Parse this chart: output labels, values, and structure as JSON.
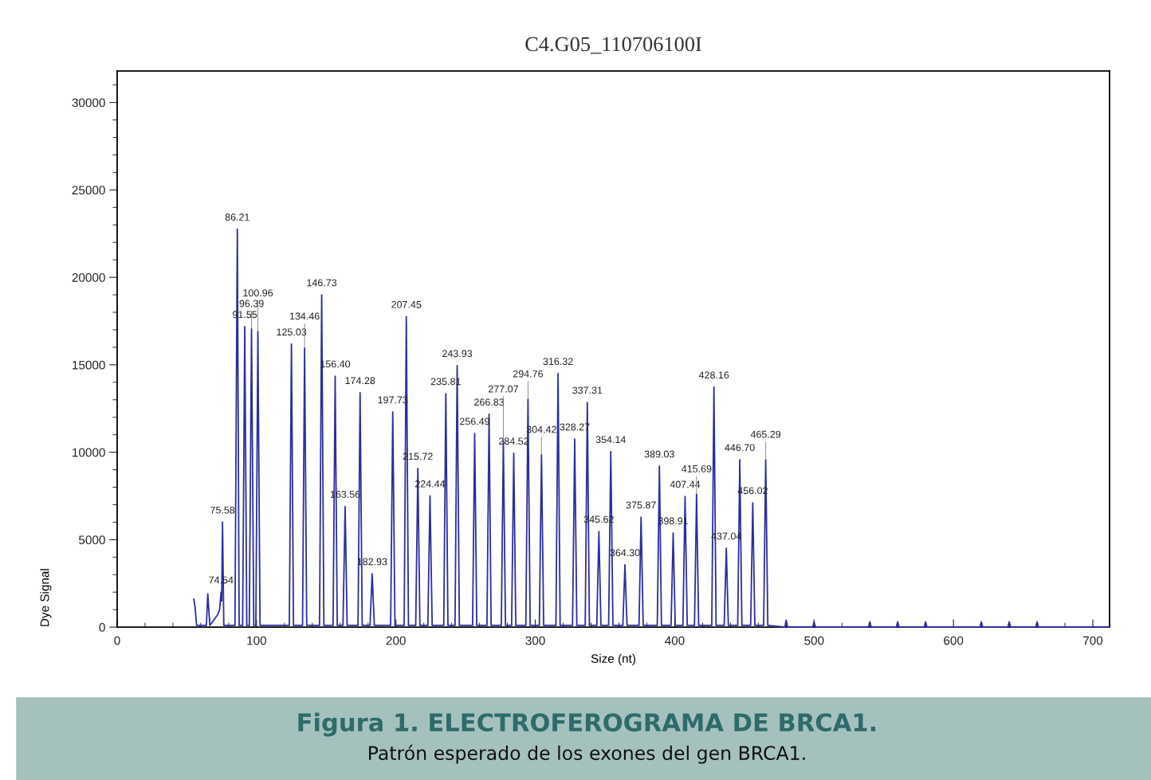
{
  "chart_data": {
    "type": "line",
    "title": "C4.G05_110706100I",
    "xlabel": "Size (nt)",
    "ylabel": "Dye Signal",
    "xlim": [
      0,
      712
    ],
    "ylim": [
      0,
      31800
    ],
    "xticks": [
      0,
      {
        "value": 20,
        "label": null
      },
      {
        "value": 40,
        "label": null
      },
      {
        "value": 60,
        "label": null
      },
      {
        "value": 80,
        "label": null
      },
      100,
      {
        "value": 120,
        "label": null
      },
      {
        "value": 140,
        "label": null
      },
      {
        "value": 160,
        "label": null
      },
      {
        "value": 180,
        "label": null
      },
      200,
      {
        "value": 220,
        "label": null
      },
      {
        "value": 240,
        "label": null
      },
      {
        "value": 260,
        "label": null
      },
      {
        "value": 280,
        "label": null
      },
      300,
      {
        "value": 320,
        "label": null
      },
      {
        "value": 340,
        "label": null
      },
      {
        "value": 360,
        "label": null
      },
      {
        "value": 380,
        "label": null
      },
      400,
      {
        "value": 420,
        "label": null
      },
      {
        "value": 440,
        "label": null
      },
      {
        "value": 460,
        "label": null
      },
      {
        "value": 480,
        "label": null
      },
      500,
      {
        "value": 520,
        "label": null
      },
      {
        "value": 540,
        "label": null
      },
      {
        "value": 560,
        "label": null
      },
      {
        "value": 580,
        "label": null
      },
      600,
      {
        "value": 620,
        "label": null
      },
      {
        "value": 640,
        "label": null
      },
      {
        "value": 660,
        "label": null
      },
      {
        "value": 680,
        "label": null
      },
      700
    ],
    "yticks": [
      0,
      {
        "value": 1000,
        "label": null
      },
      {
        "value": 2000,
        "label": null
      },
      {
        "value": 3000,
        "label": null
      },
      {
        "value": 4000,
        "label": null
      },
      5000,
      {
        "value": 6000,
        "label": null
      },
      {
        "value": 7000,
        "label": null
      },
      {
        "value": 8000,
        "label": null
      },
      {
        "value": 9000,
        "label": null
      },
      10000,
      {
        "value": 11000,
        "label": null
      },
      {
        "value": 12000,
        "label": null
      },
      {
        "value": 13000,
        "label": null
      },
      {
        "value": 14000,
        "label": null
      },
      15000,
      {
        "value": 16000,
        "label": null
      },
      {
        "value": 17000,
        "label": null
      },
      {
        "value": 18000,
        "label": null
      },
      {
        "value": 19000,
        "label": null
      },
      20000,
      {
        "value": 21000,
        "label": null
      },
      {
        "value": 22000,
        "label": null
      },
      {
        "value": 23000,
        "label": null
      },
      {
        "value": 24000,
        "label": null
      },
      25000,
      {
        "value": 26000,
        "label": null
      },
      {
        "value": 27000,
        "label": null
      },
      {
        "value": 28000,
        "label": null
      },
      {
        "value": 29000,
        "label": null
      },
      30000,
      {
        "value": 31000,
        "label": null
      }
    ],
    "grid": false,
    "marker": "none",
    "line_style": "solid",
    "series": [
      {
        "color": "#2b2f9e",
        "x": [
          55,
          55.8,
          57,
          60,
          64,
          65,
          66.5,
          72,
          73.5,
          74.54,
          75,
          75.58,
          76.5,
          84.5,
          86.21,
          87.5,
          90,
          91.55,
          93,
          94.8,
          96.39,
          98,
          99.5,
          100.96,
          102.5,
          123.5,
          125.03,
          126.5,
          133,
          134.46,
          136,
          145.2,
          146.73,
          148.3,
          154.9,
          156.4,
          157.9,
          162,
          163.56,
          165,
          172.8,
          174.28,
          175.8,
          181.4,
          182.93,
          184.5,
          196.2,
          197.73,
          199.3,
          205.9,
          207.45,
          209,
          214.2,
          215.72,
          217.2,
          222.9,
          224.44,
          226,
          234.3,
          235.81,
          237.3,
          242.4,
          243.93,
          245.5,
          255,
          256.49,
          258,
          265.3,
          266.83,
          268.3,
          275.6,
          277.07,
          278.6,
          283,
          284.52,
          286,
          293.2,
          294.76,
          296.3,
          302.9,
          304.42,
          306,
          314.8,
          316.32,
          317.8,
          326.7,
          328.27,
          329.8,
          335.8,
          337.31,
          338.8,
          344.1,
          345.62,
          347.1,
          352.6,
          354.14,
          355.7,
          362.8,
          364.3,
          365.8,
          374.4,
          375.87,
          377.4,
          387.5,
          389.03,
          390.5,
          397.4,
          398.91,
          400.4,
          405.9,
          407.44,
          409,
          414.2,
          415.69,
          417.2,
          426.6,
          428.16,
          429.7,
          435.5,
          437.04,
          438.5,
          445.2,
          446.7,
          448.2,
          454.5,
          456.02,
          457.5,
          463.8,
          465.29,
          466.8,
          479,
          480,
          481,
          499,
          500,
          501,
          539,
          540,
          541,
          559,
          560,
          561,
          579,
          580,
          581,
          619,
          620,
          621,
          639,
          640,
          641,
          659,
          660,
          661,
          712
        ],
        "values": [
          1600,
          1200,
          100,
          100,
          100,
          1900,
          100,
          700,
          1000,
          2000,
          1500,
          6000,
          100,
          100,
          22750,
          100,
          100,
          17180,
          100,
          100,
          17050,
          100,
          100,
          16900,
          100,
          100,
          16180,
          100,
          100,
          15950,
          100,
          100,
          19000,
          100,
          100,
          14350,
          100,
          100,
          6900,
          100,
          100,
          13400,
          100,
          100,
          3050,
          100,
          100,
          12300,
          100,
          100,
          17750,
          100,
          100,
          9070,
          100,
          100,
          7500,
          100,
          100,
          13350,
          100,
          100,
          14950,
          100,
          100,
          11070,
          100,
          100,
          12170,
          100,
          100,
          10650,
          100,
          100,
          9940,
          100,
          100,
          13030,
          100,
          100,
          9850,
          100,
          100,
          14500,
          100,
          100,
          10750,
          100,
          100,
          12850,
          100,
          100,
          5470,
          100,
          100,
          10030,
          100,
          100,
          3560,
          100,
          100,
          6290,
          100,
          100,
          9200,
          100,
          100,
          5380,
          100,
          100,
          7470,
          100,
          100,
          7600,
          100,
          100,
          13720,
          100,
          100,
          4510,
          100,
          100,
          9570,
          100,
          100,
          7110,
          100,
          100,
          9570,
          100,
          0,
          400,
          0,
          0,
          300,
          0,
          0,
          300,
          0,
          0,
          300,
          0,
          0,
          300,
          0,
          0,
          300,
          0,
          0,
          300,
          0,
          0,
          300,
          0,
          0
        ]
      }
    ],
    "annotations": [
      {
        "text": "74.54",
        "x": 74.54,
        "y": 2000
      },
      {
        "text": "75.58",
        "x": 75.58,
        "y": 6000
      },
      {
        "text": "86.21",
        "x": 86.21,
        "y": 22750
      },
      {
        "text": "91.55",
        "x": 91.55,
        "y": 17180
      },
      {
        "text": "96.39",
        "x": 96.39,
        "y": 17050
      },
      {
        "text": "100.96",
        "x": 100.96,
        "y": 16900
      },
      {
        "text": "125.03",
        "x": 125.03,
        "y": 16180
      },
      {
        "text": "134.46",
        "x": 134.46,
        "y": 15950
      },
      {
        "text": "146.73",
        "x": 146.73,
        "y": 19000
      },
      {
        "text": "156.40",
        "x": 156.4,
        "y": 14350
      },
      {
        "text": "163.56",
        "x": 163.56,
        "y": 6900
      },
      {
        "text": "174.28",
        "x": 174.28,
        "y": 13400
      },
      {
        "text": "182.93",
        "x": 182.93,
        "y": 3050
      },
      {
        "text": "197.73",
        "x": 197.73,
        "y": 12300
      },
      {
        "text": "207.45",
        "x": 207.45,
        "y": 17750
      },
      {
        "text": "215.72",
        "x": 215.72,
        "y": 9070
      },
      {
        "text": "224.44",
        "x": 224.44,
        "y": 7500
      },
      {
        "text": "235.81",
        "x": 235.81,
        "y": 13350
      },
      {
        "text": "243.93",
        "x": 243.93,
        "y": 14950
      },
      {
        "text": "256.49",
        "x": 256.49,
        "y": 11070
      },
      {
        "text": "266.83",
        "x": 266.83,
        "y": 12170
      },
      {
        "text": "277.07",
        "x": 277.07,
        "y": 10650
      },
      {
        "text": "284.52",
        "x": 284.52,
        "y": 9940
      },
      {
        "text": "294.76",
        "x": 294.76,
        "y": 13030
      },
      {
        "text": "304.42",
        "x": 304.42,
        "y": 9850
      },
      {
        "text": "316.32",
        "x": 316.32,
        "y": 14500
      },
      {
        "text": "328.27",
        "x": 328.27,
        "y": 10750
      },
      {
        "text": "337.31",
        "x": 337.31,
        "y": 12850
      },
      {
        "text": "345.62",
        "x": 345.62,
        "y": 5470
      },
      {
        "text": "354.14",
        "x": 354.14,
        "y": 10030
      },
      {
        "text": "364.30",
        "x": 364.3,
        "y": 3560
      },
      {
        "text": "375.87",
        "x": 375.87,
        "y": 6290
      },
      {
        "text": "389.03",
        "x": 389.03,
        "y": 9200
      },
      {
        "text": "398.91",
        "x": 398.91,
        "y": 5380
      },
      {
        "text": "407.44",
        "x": 407.44,
        "y": 7470
      },
      {
        "text": "415.69",
        "x": 415.69,
        "y": 7600
      },
      {
        "text": "428.16",
        "x": 428.16,
        "y": 13720
      },
      {
        "text": "437.04",
        "x": 437.04,
        "y": 4510
      },
      {
        "text": "446.70",
        "x": 446.7,
        "y": 9570
      },
      {
        "text": "456.02",
        "x": 456.02,
        "y": 7110
      },
      {
        "text": "465.29",
        "x": 465.29,
        "y": 9570
      },
      "Figura 1. ELECTROFEROGRAMA DE BRCA1.",
      "Patrón esperado de los exones del gen BRCA1."
    ]
  }
}
